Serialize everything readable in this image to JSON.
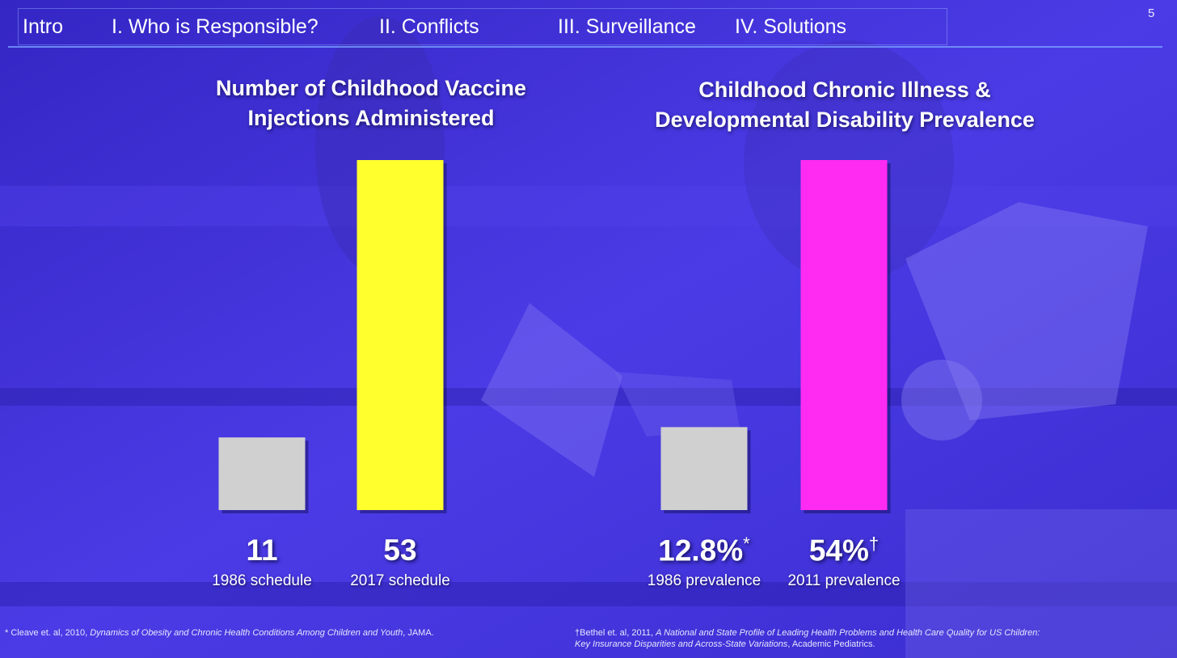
{
  "nav": {
    "items": [
      "Intro",
      "I. Who is Responsible?",
      "II. Conflicts",
      "III. Surveillance",
      "IV. Solutions"
    ],
    "page_number": "5"
  },
  "colors": {
    "background": "#3c2fd6",
    "bar_baseline": "#d0d0d0",
    "bar_vaccine": "#ffff2e",
    "bar_illness": "#ff2bf2"
  },
  "chart_data": [
    {
      "type": "bar",
      "title_line1": "Number of Childhood Vaccine",
      "title_line2": "Injections Administered",
      "categories": [
        "1986 schedule",
        "2017 schedule"
      ],
      "values": [
        11,
        53
      ],
      "value_labels": [
        "11",
        "53"
      ],
      "value_marks": [
        "",
        ""
      ],
      "ylim": [
        0,
        53
      ],
      "bar_colors": [
        "#d0d0d0",
        "#ffff2e"
      ]
    },
    {
      "type": "bar",
      "title_line1": "Childhood Chronic Illness &",
      "title_line2": "Developmental Disability Prevalence",
      "categories": [
        "1986 prevalence",
        "2011 prevalence"
      ],
      "values": [
        12.8,
        54
      ],
      "value_labels": [
        "12.8%",
        "54%"
      ],
      "value_marks": [
        "*",
        "†"
      ],
      "ylim": [
        0,
        54
      ],
      "bar_colors": [
        "#d0d0d0",
        "#ff2bf2"
      ]
    }
  ],
  "footnotes": {
    "left_prefix": "* Cleave et. al, 2010, ",
    "left_title": "Dynamics of Obesity and Chronic Health Conditions Among Children and Youth",
    "left_suffix": ", JAMA.",
    "right_prefix": "†Bethel et. al, 2011, ",
    "right_title_line1": "A National and State Profile of Leading Health Problems and Health Care Quality for US Children:",
    "right_title_line2": "Key Insurance Disparities and Across-State Variations",
    "right_suffix": ", Academic Pediatrics."
  }
}
